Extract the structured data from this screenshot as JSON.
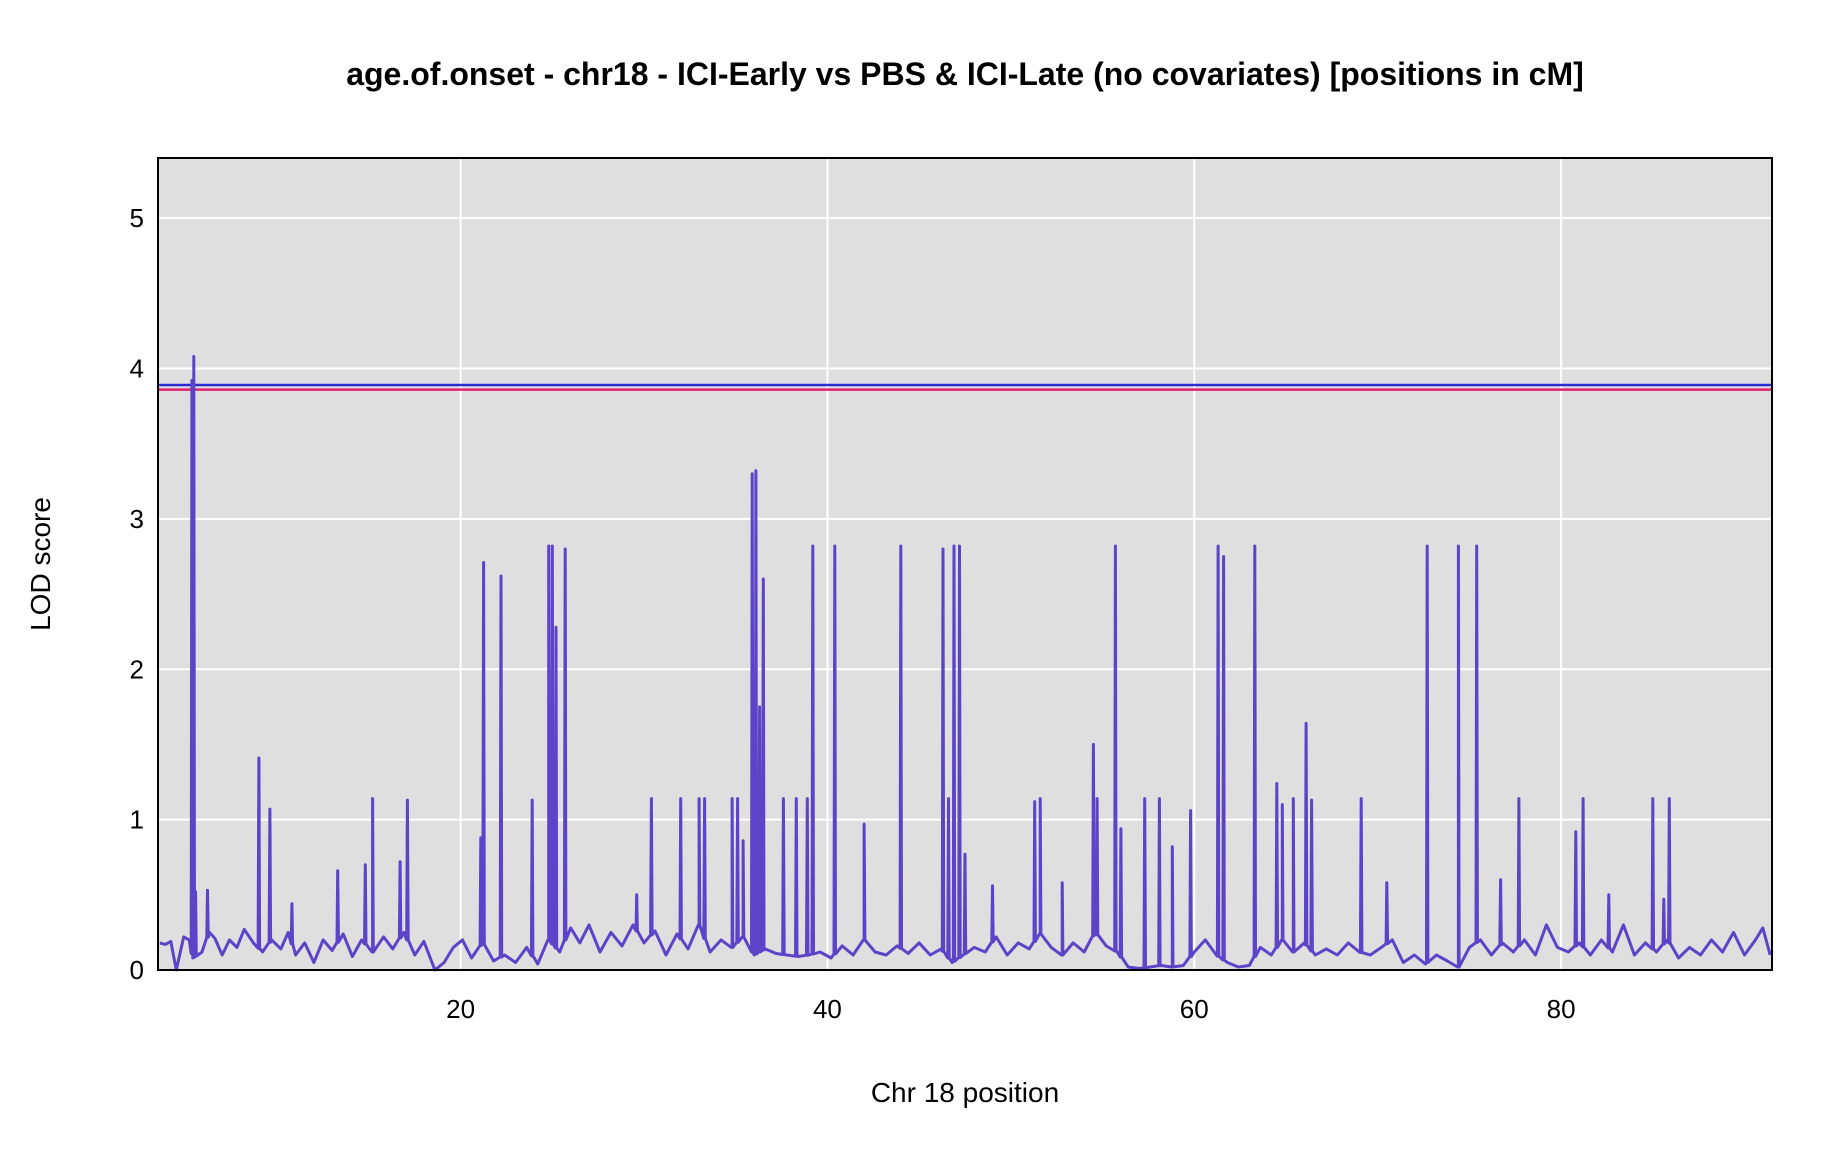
{
  "chart_data": {
    "type": "line",
    "title": "age.of.onset - chr18 - ICI-Early vs PBS & ICI-Late (no covariates) [positions in cM]",
    "xlabel": "Chr 18 position",
    "ylabel": "LOD score",
    "xlim": [
      3.5,
      91.5
    ],
    "ylim": [
      0,
      5.4
    ],
    "xticks": [
      20,
      40,
      60,
      80
    ],
    "yticks": [
      0,
      1,
      2,
      3,
      4,
      5
    ],
    "grid": true,
    "legend": "none",
    "thresholds": [
      {
        "value": 3.89,
        "color": "#2b2bd6"
      },
      {
        "value": 3.86,
        "color": "#e0206a"
      }
    ],
    "series": [
      {
        "color": "#5b44c8",
        "baseline": [
          [
            3.6,
            0.18
          ],
          [
            3.9,
            0.17
          ],
          [
            4.2,
            0.19
          ],
          [
            4.5,
            0.0
          ],
          [
            4.9,
            0.22
          ],
          [
            5.2,
            0.2
          ],
          [
            5.4,
            0.08
          ],
          [
            5.9,
            0.12
          ],
          [
            6.3,
            0.25
          ],
          [
            6.6,
            0.21
          ],
          [
            7.0,
            0.1
          ],
          [
            7.4,
            0.2
          ],
          [
            7.8,
            0.15
          ],
          [
            8.2,
            0.27
          ],
          [
            8.7,
            0.18
          ],
          [
            9.2,
            0.12
          ],
          [
            9.7,
            0.2
          ],
          [
            10.2,
            0.14
          ],
          [
            10.6,
            0.25
          ],
          [
            11.0,
            0.1
          ],
          [
            11.5,
            0.18
          ],
          [
            12.0,
            0.05
          ],
          [
            12.5,
            0.2
          ],
          [
            13.0,
            0.13
          ],
          [
            13.6,
            0.24
          ],
          [
            14.1,
            0.09
          ],
          [
            14.6,
            0.2
          ],
          [
            15.2,
            0.12
          ],
          [
            15.8,
            0.22
          ],
          [
            16.3,
            0.14
          ],
          [
            16.9,
            0.25
          ],
          [
            17.5,
            0.1
          ],
          [
            18.0,
            0.19
          ],
          [
            18.6,
            0.0
          ],
          [
            19.1,
            0.05
          ],
          [
            19.6,
            0.15
          ],
          [
            20.1,
            0.2
          ],
          [
            20.6,
            0.08
          ],
          [
            21.2,
            0.18
          ],
          [
            21.8,
            0.06
          ],
          [
            22.4,
            0.1
          ],
          [
            23.0,
            0.05
          ],
          [
            23.6,
            0.15
          ],
          [
            24.2,
            0.04
          ],
          [
            24.8,
            0.2
          ],
          [
            25.4,
            0.12
          ],
          [
            26.0,
            0.28
          ],
          [
            26.5,
            0.18
          ],
          [
            27.0,
            0.3
          ],
          [
            27.6,
            0.12
          ],
          [
            28.2,
            0.25
          ],
          [
            28.8,
            0.16
          ],
          [
            29.4,
            0.3
          ],
          [
            30.0,
            0.18
          ],
          [
            30.6,
            0.26
          ],
          [
            31.2,
            0.1
          ],
          [
            31.8,
            0.24
          ],
          [
            32.4,
            0.14
          ],
          [
            33.0,
            0.3
          ],
          [
            33.6,
            0.12
          ],
          [
            34.2,
            0.2
          ],
          [
            34.8,
            0.15
          ],
          [
            35.4,
            0.22
          ],
          [
            36.0,
            0.1
          ],
          [
            36.6,
            0.14
          ],
          [
            37.2,
            0.11
          ],
          [
            37.8,
            0.1
          ],
          [
            38.4,
            0.09
          ],
          [
            39.0,
            0.1
          ],
          [
            39.6,
            0.12
          ],
          [
            40.2,
            0.08
          ],
          [
            40.8,
            0.16
          ],
          [
            41.4,
            0.1
          ],
          [
            42.0,
            0.2
          ],
          [
            42.6,
            0.12
          ],
          [
            43.2,
            0.1
          ],
          [
            43.8,
            0.16
          ],
          [
            44.4,
            0.11
          ],
          [
            45.0,
            0.18
          ],
          [
            45.6,
            0.1
          ],
          [
            46.2,
            0.14
          ],
          [
            46.8,
            0.05
          ],
          [
            47.4,
            0.1
          ],
          [
            48.0,
            0.15
          ],
          [
            48.6,
            0.12
          ],
          [
            49.2,
            0.22
          ],
          [
            49.8,
            0.1
          ],
          [
            50.4,
            0.18
          ],
          [
            51.0,
            0.14
          ],
          [
            51.6,
            0.24
          ],
          [
            52.2,
            0.15
          ],
          [
            52.8,
            0.1
          ],
          [
            53.4,
            0.18
          ],
          [
            54.0,
            0.12
          ],
          [
            54.6,
            0.25
          ],
          [
            55.2,
            0.16
          ],
          [
            55.8,
            0.12
          ],
          [
            56.4,
            0.02
          ],
          [
            57.0,
            0.01
          ],
          [
            57.6,
            0.02
          ],
          [
            58.2,
            0.03
          ],
          [
            58.8,
            0.02
          ],
          [
            59.4,
            0.03
          ],
          [
            60.0,
            0.12
          ],
          [
            60.6,
            0.2
          ],
          [
            61.2,
            0.1
          ],
          [
            61.8,
            0.05
          ],
          [
            62.4,
            0.02
          ],
          [
            63.0,
            0.03
          ],
          [
            63.6,
            0.15
          ],
          [
            64.2,
            0.1
          ],
          [
            64.8,
            0.2
          ],
          [
            65.4,
            0.12
          ],
          [
            66.0,
            0.18
          ],
          [
            66.6,
            0.1
          ],
          [
            67.2,
            0.14
          ],
          [
            67.8,
            0.1
          ],
          [
            68.4,
            0.18
          ],
          [
            69.0,
            0.12
          ],
          [
            69.6,
            0.1
          ],
          [
            70.2,
            0.15
          ],
          [
            70.8,
            0.2
          ],
          [
            71.4,
            0.05
          ],
          [
            72.0,
            0.1
          ],
          [
            72.6,
            0.04
          ],
          [
            73.2,
            0.1
          ],
          [
            73.8,
            0.06
          ],
          [
            74.4,
            0.02
          ],
          [
            75.0,
            0.15
          ],
          [
            75.6,
            0.2
          ],
          [
            76.2,
            0.1
          ],
          [
            76.8,
            0.18
          ],
          [
            77.4,
            0.12
          ],
          [
            78.0,
            0.2
          ],
          [
            78.6,
            0.1
          ],
          [
            79.2,
            0.3
          ],
          [
            79.8,
            0.15
          ],
          [
            80.4,
            0.12
          ],
          [
            81.0,
            0.18
          ],
          [
            81.6,
            0.1
          ],
          [
            82.2,
            0.2
          ],
          [
            82.8,
            0.12
          ],
          [
            83.4,
            0.3
          ],
          [
            84.0,
            0.1
          ],
          [
            84.6,
            0.18
          ],
          [
            85.2,
            0.12
          ],
          [
            85.8,
            0.2
          ],
          [
            86.4,
            0.08
          ],
          [
            87.0,
            0.15
          ],
          [
            87.6,
            0.1
          ],
          [
            88.2,
            0.2
          ],
          [
            88.8,
            0.12
          ],
          [
            89.4,
            0.25
          ],
          [
            90.0,
            0.1
          ],
          [
            90.6,
            0.2
          ],
          [
            91.0,
            0.28
          ],
          [
            91.4,
            0.1
          ]
        ],
        "peaks": [
          [
            5.35,
            3.92
          ],
          [
            5.45,
            4.08
          ],
          [
            5.55,
            0.52
          ],
          [
            6.2,
            0.53
          ],
          [
            9.0,
            1.41
          ],
          [
            9.6,
            1.07
          ],
          [
            10.8,
            0.44
          ],
          [
            13.3,
            0.66
          ],
          [
            14.8,
            0.7
          ],
          [
            15.2,
            1.14
          ],
          [
            16.7,
            0.72
          ],
          [
            17.1,
            1.13
          ],
          [
            21.1,
            0.88
          ],
          [
            21.25,
            2.71
          ],
          [
            22.2,
            2.62
          ],
          [
            23.9,
            1.13
          ],
          [
            24.8,
            2.82
          ],
          [
            25.0,
            2.82
          ],
          [
            25.2,
            2.28
          ],
          [
            25.7,
            2.8
          ],
          [
            29.6,
            0.5
          ],
          [
            30.4,
            1.14
          ],
          [
            32.0,
            1.14
          ],
          [
            33.0,
            1.14
          ],
          [
            33.3,
            1.14
          ],
          [
            34.8,
            1.14
          ],
          [
            35.1,
            1.14
          ],
          [
            35.4,
            0.86
          ],
          [
            35.9,
            3.3
          ],
          [
            36.1,
            3.32
          ],
          [
            36.3,
            1.75
          ],
          [
            36.5,
            2.6
          ],
          [
            37.6,
            1.14
          ],
          [
            38.3,
            1.14
          ],
          [
            38.9,
            1.14
          ],
          [
            39.2,
            2.82
          ],
          [
            40.4,
            2.82
          ],
          [
            42.0,
            0.97
          ],
          [
            44.0,
            2.82
          ],
          [
            46.3,
            2.8
          ],
          [
            46.6,
            1.14
          ],
          [
            46.9,
            2.82
          ],
          [
            47.2,
            2.82
          ],
          [
            47.5,
            0.77
          ],
          [
            49.0,
            0.56
          ],
          [
            51.3,
            1.12
          ],
          [
            51.6,
            1.14
          ],
          [
            52.8,
            0.58
          ],
          [
            54.5,
            1.5
          ],
          [
            54.7,
            1.14
          ],
          [
            55.7,
            2.82
          ],
          [
            56.0,
            0.94
          ],
          [
            57.3,
            1.14
          ],
          [
            58.1,
            1.14
          ],
          [
            58.8,
            0.82
          ],
          [
            59.8,
            1.06
          ],
          [
            61.3,
            2.82
          ],
          [
            61.6,
            2.75
          ],
          [
            63.3,
            2.82
          ],
          [
            64.5,
            1.24
          ],
          [
            64.8,
            1.1
          ],
          [
            65.4,
            1.14
          ],
          [
            66.1,
            1.64
          ],
          [
            66.4,
            1.13
          ],
          [
            69.1,
            1.14
          ],
          [
            70.5,
            0.58
          ],
          [
            72.7,
            2.82
          ],
          [
            74.4,
            2.82
          ],
          [
            75.4,
            2.82
          ],
          [
            76.7,
            0.6
          ],
          [
            77.7,
            1.14
          ],
          [
            80.8,
            0.92
          ],
          [
            81.2,
            1.14
          ],
          [
            82.6,
            0.5
          ],
          [
            85.0,
            1.14
          ],
          [
            85.6,
            0.47
          ],
          [
            85.9,
            1.14
          ]
        ]
      }
    ]
  }
}
